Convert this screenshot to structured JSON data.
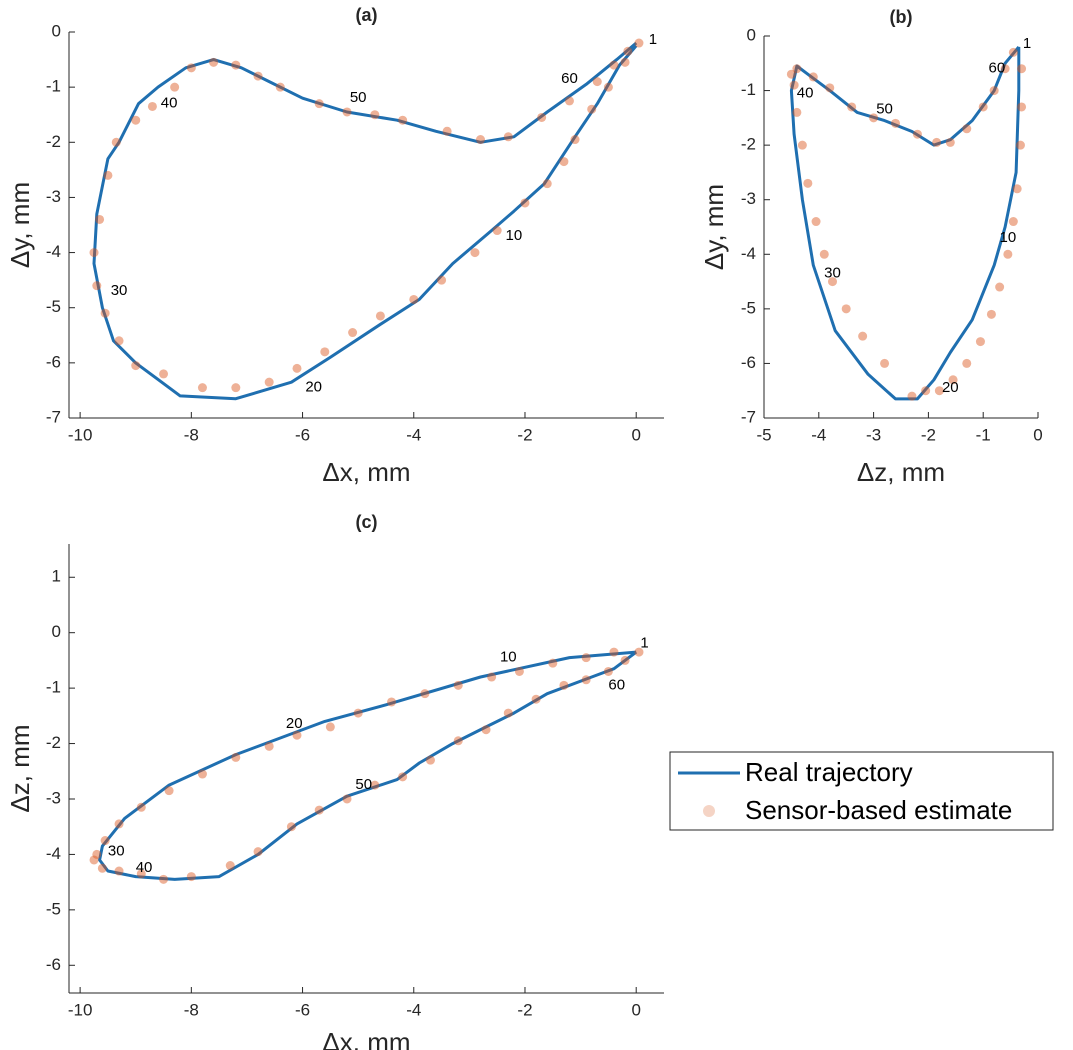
{
  "chart_data": [
    {
      "type": "line",
      "title": "(a)",
      "xlabel": "Δx, mm",
      "ylabel": "Δy, mm",
      "xlim": [
        -10.2,
        0.5
      ],
      "ylim": [
        -7,
        0
      ],
      "xticks": [
        -10,
        -8,
        -6,
        -4,
        -2,
        0
      ],
      "yticks": [
        0,
        -1,
        -2,
        -3,
        -4,
        -5,
        -6,
        -7
      ],
      "series": [
        {
          "color": "#1f6fb0",
          "x": [
            0,
            -0.3,
            -0.7,
            -1.1,
            -1.65,
            -2.2,
            -2.6,
            -3.3,
            -3.9,
            -4.6,
            -5.5,
            -6.2,
            -7.2,
            -8.2,
            -9,
            -9.4,
            -9.6,
            -9.75,
            -9.7,
            -9.5,
            -9.3,
            -8.95,
            -8.6,
            -8.1,
            -7.6,
            -7.1,
            -6.6,
            -6,
            -5.2,
            -4.3,
            -3.6,
            -2.8,
            -2.2,
            -1.6,
            -0.9,
            -0.35,
            0
          ],
          "y": [
            -0.25,
            -0.6,
            -1.3,
            -1.9,
            -2.75,
            -3.25,
            -3.6,
            -4.2,
            -4.85,
            -5.3,
            -5.9,
            -6.35,
            -6.65,
            -6.6,
            -6,
            -5.6,
            -5,
            -4.2,
            -3.3,
            -2.3,
            -2,
            -1.3,
            -1,
            -0.65,
            -0.5,
            -0.65,
            -0.9,
            -1.2,
            -1.45,
            -1.6,
            -1.8,
            -2,
            -1.9,
            -1.45,
            -0.95,
            -0.5,
            -0.2
          ]
        },
        {
          "color": "#d95319",
          "x": [
            0.05,
            -0.2,
            -0.5,
            -0.8,
            -1.1,
            -1.3,
            -1.6,
            -2.0,
            -2.5,
            -2.9,
            -3.5,
            -4.0,
            -4.6,
            -5.1,
            -5.6,
            -6.1,
            -6.6,
            -7.2,
            -7.8,
            -8.5,
            -9.0,
            -9.3,
            -9.55,
            -9.7,
            -9.75,
            -9.65,
            -9.5,
            -9.35,
            -9.0,
            -8.7,
            -8.3,
            -8.0,
            -7.6,
            -7.2,
            -6.8,
            -6.4,
            -5.7,
            -5.2,
            -4.7,
            -4.2,
            -3.4,
            -2.8,
            -2.3,
            -1.7,
            -1.2,
            -0.7,
            -0.4,
            -0.15
          ],
          "y": [
            -0.2,
            -0.55,
            -1.0,
            -1.4,
            -1.95,
            -2.35,
            -2.75,
            -3.1,
            -3.6,
            -4.0,
            -4.5,
            -4.85,
            -5.15,
            -5.45,
            -5.8,
            -6.1,
            -6.35,
            -6.45,
            -6.45,
            -6.2,
            -6.05,
            -5.6,
            -5.1,
            -4.6,
            -4.0,
            -3.4,
            -2.6,
            -2.0,
            -1.6,
            -1.35,
            -1.0,
            -0.65,
            -0.55,
            -0.6,
            -0.8,
            -1.0,
            -1.3,
            -1.45,
            -1.5,
            -1.6,
            -1.8,
            -1.95,
            -1.9,
            -1.55,
            -1.25,
            -0.9,
            -0.6,
            -0.35
          ]
        }
      ],
      "annotations": [
        {
          "text": "1",
          "x": 0.3,
          "y": -0.15
        },
        {
          "text": "10",
          "x": -2.2,
          "y": -3.7
        },
        {
          "text": "20",
          "x": -5.8,
          "y": -6.45
        },
        {
          "text": "30",
          "x": -9.3,
          "y": -4.7
        },
        {
          "text": "40",
          "x": -8.4,
          "y": -1.3
        },
        {
          "text": "50",
          "x": -5,
          "y": -1.2
        },
        {
          "text": "60",
          "x": -1.2,
          "y": -0.85
        }
      ]
    },
    {
      "type": "line",
      "title": "(b)",
      "xlabel": "Δz, mm",
      "ylabel": "Δy, mm",
      "xlim": [
        -5,
        0
      ],
      "ylim": [
        -7,
        0
      ],
      "xticks": [
        -5,
        -4,
        -3,
        -2,
        -1,
        0
      ],
      "yticks": [
        0,
        -1,
        -2,
        -3,
        -4,
        -5,
        -6,
        -7
      ],
      "series": [
        {
          "color": "#1f6fb0",
          "x": [
            -0.35,
            -0.35,
            -0.4,
            -0.6,
            -0.8,
            -1.2,
            -1.6,
            -1.9,
            -2.2,
            -2.6,
            -3.1,
            -3.7,
            -4.1,
            -4.3,
            -4.45,
            -4.5,
            -4.4,
            -4.2,
            -3.8,
            -3.3,
            -2.8,
            -2.3,
            -1.9,
            -1.6,
            -1.2,
            -0.8,
            -0.6,
            -0.35
          ],
          "y": [
            -0.2,
            -1,
            -2.5,
            -3.5,
            -4.2,
            -5.2,
            -5.8,
            -6.3,
            -6.65,
            -6.65,
            -6.2,
            -5.4,
            -4.2,
            -3.0,
            -1.8,
            -1.0,
            -0.55,
            -0.7,
            -1.0,
            -1.4,
            -1.55,
            -1.75,
            -2.0,
            -1.9,
            -1.55,
            -1.0,
            -0.5,
            -0.2
          ]
        },
        {
          "color": "#d95319",
          "x": [
            -0.3,
            -0.3,
            -0.32,
            -0.38,
            -0.45,
            -0.55,
            -0.7,
            -0.85,
            -1.05,
            -1.3,
            -1.55,
            -1.8,
            -2.05,
            -2.3,
            -2.8,
            -3.2,
            -3.5,
            -3.75,
            -3.9,
            -4.05,
            -4.2,
            -4.3,
            -4.4,
            -4.45,
            -4.5,
            -4.4,
            -4.1,
            -3.8,
            -3.4,
            -3.0,
            -2.6,
            -2.2,
            -1.85,
            -1.6,
            -1.3,
            -1.0,
            -0.8,
            -0.6,
            -0.45
          ],
          "y": [
            -0.6,
            -1.3,
            -2.0,
            -2.8,
            -3.4,
            -4.0,
            -4.6,
            -5.1,
            -5.6,
            -6.0,
            -6.3,
            -6.5,
            -6.5,
            -6.6,
            -6.0,
            -5.5,
            -5.0,
            -4.5,
            -4.0,
            -3.4,
            -2.7,
            -2.0,
            -1.4,
            -0.9,
            -0.7,
            -0.6,
            -0.75,
            -0.95,
            -1.3,
            -1.5,
            -1.6,
            -1.8,
            -1.95,
            -1.95,
            -1.7,
            -1.3,
            -1.0,
            -0.6,
            -0.3
          ]
        }
      ],
      "annotations": [
        {
          "text": "1",
          "x": -0.2,
          "y": -0.15
        },
        {
          "text": "10",
          "x": -0.55,
          "y": -3.7
        },
        {
          "text": "20",
          "x": -1.6,
          "y": -6.45
        },
        {
          "text": "30",
          "x": -3.75,
          "y": -4.35
        },
        {
          "text": "40",
          "x": -4.25,
          "y": -1.05
        },
        {
          "text": "50",
          "x": -2.8,
          "y": -1.35
        },
        {
          "text": "60",
          "x": -0.75,
          "y": -0.6
        }
      ]
    },
    {
      "type": "line",
      "title": "(c)",
      "xlabel": "Δx, mm",
      "ylabel": "Δz, mm",
      "xlim": [
        -10.2,
        0.5
      ],
      "ylim": [
        -6.5,
        1.6
      ],
      "xticks": [
        -10,
        -8,
        -6,
        -4,
        -2,
        0
      ],
      "yticks": [
        1,
        0,
        -1,
        -2,
        -3,
        -4,
        -5,
        -6
      ],
      "legend": "right",
      "series": [
        {
          "name": "Real trajectory",
          "color": "#1f6fb0",
          "x": [
            0,
            -1.2,
            -2.8,
            -4.5,
            -5.6,
            -7.2,
            -8.4,
            -9.2,
            -9.6,
            -9.65,
            -9.5,
            -9.0,
            -8.3,
            -7.5,
            -6.8,
            -6.1,
            -5.2,
            -4.3,
            -3.9,
            -3.3,
            -2.7,
            -2.2,
            -1.6,
            -0.8,
            -0.4,
            0
          ],
          "y": [
            -0.35,
            -0.45,
            -0.8,
            -1.3,
            -1.6,
            -2.2,
            -2.75,
            -3.35,
            -3.85,
            -4.1,
            -4.3,
            -4.4,
            -4.45,
            -4.4,
            -4.0,
            -3.45,
            -2.95,
            -2.65,
            -2.35,
            -2.0,
            -1.7,
            -1.45,
            -1.1,
            -0.8,
            -0.65,
            -0.35
          ]
        },
        {
          "name": "Sensor-based estimate",
          "color": "#d95319",
          "x": [
            0.05,
            -0.4,
            -0.9,
            -1.5,
            -2.1,
            -2.6,
            -3.2,
            -3.8,
            -4.4,
            -5.0,
            -5.5,
            -6.1,
            -6.6,
            -7.2,
            -7.8,
            -8.4,
            -8.9,
            -9.3,
            -9.55,
            -9.7,
            -9.75,
            -9.6,
            -9.3,
            -8.9,
            -8.5,
            -8.0,
            -7.3,
            -6.8,
            -6.2,
            -5.7,
            -5.2,
            -4.7,
            -4.2,
            -3.7,
            -3.2,
            -2.7,
            -2.3,
            -1.8,
            -1.3,
            -0.9,
            -0.5,
            -0.2
          ],
          "y": [
            -0.35,
            -0.35,
            -0.45,
            -0.55,
            -0.7,
            -0.8,
            -0.95,
            -1.1,
            -1.25,
            -1.45,
            -1.7,
            -1.85,
            -2.05,
            -2.25,
            -2.55,
            -2.85,
            -3.15,
            -3.45,
            -3.75,
            -4.0,
            -4.1,
            -4.25,
            -4.3,
            -4.35,
            -4.45,
            -4.4,
            -4.2,
            -3.95,
            -3.5,
            -3.2,
            -3.0,
            -2.75,
            -2.6,
            -2.3,
            -1.95,
            -1.75,
            -1.45,
            -1.2,
            -0.95,
            -0.85,
            -0.7,
            -0.5
          ]
        }
      ],
      "annotations": [
        {
          "text": "1",
          "x": 0.15,
          "y": -0.2
        },
        {
          "text": "10",
          "x": -2.3,
          "y": -0.45
        },
        {
          "text": "20",
          "x": -6.15,
          "y": -1.65
        },
        {
          "text": "30",
          "x": -9.35,
          "y": -3.95
        },
        {
          "text": "40",
          "x": -8.85,
          "y": -4.25
        },
        {
          "text": "50",
          "x": -4.9,
          "y": -2.75
        },
        {
          "text": "60",
          "x": -0.35,
          "y": -0.95
        }
      ]
    }
  ]
}
